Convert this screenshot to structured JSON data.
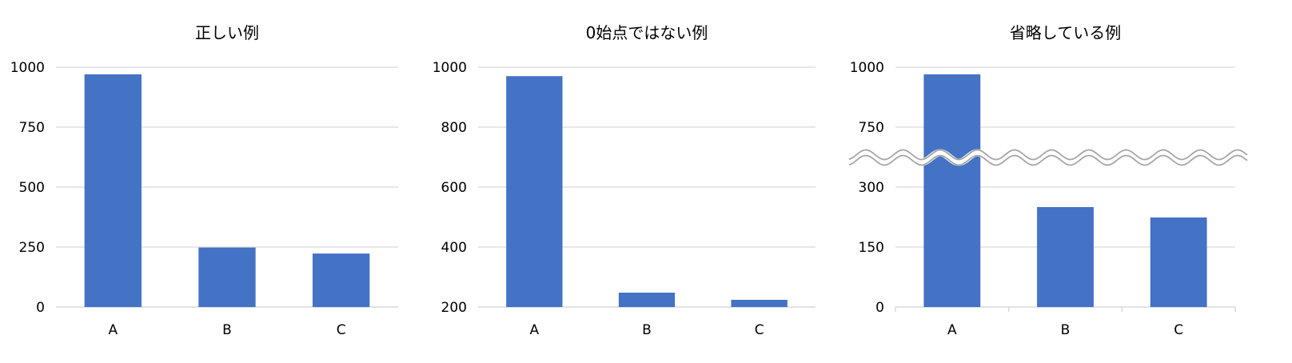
{
  "colors": {
    "bar": "#4472C4",
    "grid": "#D9D9D9",
    "break": "#A6A6A6"
  },
  "chart_data": [
    {
      "type": "bar",
      "title": "正しい例",
      "categories": [
        "A",
        "B",
        "C"
      ],
      "values": [
        970,
        248,
        223
      ],
      "ylim": [
        0,
        1000
      ],
      "yticks": [
        "0",
        "250",
        "500",
        "750",
        "1000"
      ],
      "grid": true
    },
    {
      "type": "bar",
      "title": "0始点ではない例",
      "categories": [
        "A",
        "B",
        "C"
      ],
      "values": [
        970,
        248,
        224
      ],
      "ylim": [
        200,
        1000
      ],
      "yticks": [
        "200",
        "400",
        "600",
        "800",
        "1000"
      ],
      "grid": true
    },
    {
      "type": "bar",
      "title": "省略している例",
      "categories": [
        "A",
        "B",
        "C"
      ],
      "values": [
        970,
        250,
        224
      ],
      "ylim": [
        0,
        1000
      ],
      "axis_break": [
        300,
        750
      ],
      "yticks": [
        "0",
        "150",
        "300",
        "750",
        "1000"
      ],
      "grid": true
    }
  ]
}
